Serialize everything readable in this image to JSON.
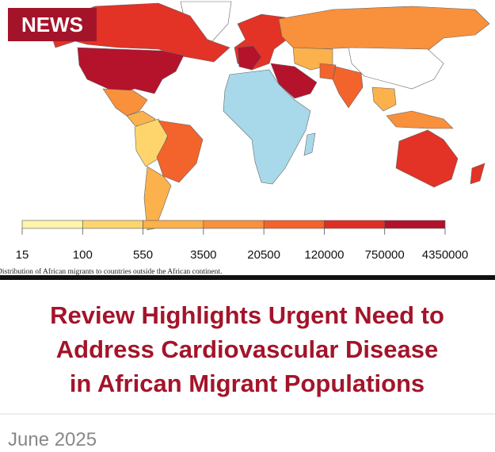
{
  "badge": "NEWS",
  "legend": {
    "ticks": [
      15,
      100,
      550,
      3500,
      20500,
      120000,
      750000,
      4350000
    ],
    "colors": [
      "#fff4aa",
      "#fdd56c",
      "#fbb14c",
      "#f8903c",
      "#f3632c",
      "#e12e24",
      "#b3102b"
    ]
  },
  "caption": "Distribution of African migrants to countries outside the African continent.",
  "headline": [
    "Review Highlights Urgent Need to",
    "Address Cardiovascular Disease",
    "in African Migrant Populations"
  ],
  "date": "June 2025"
}
